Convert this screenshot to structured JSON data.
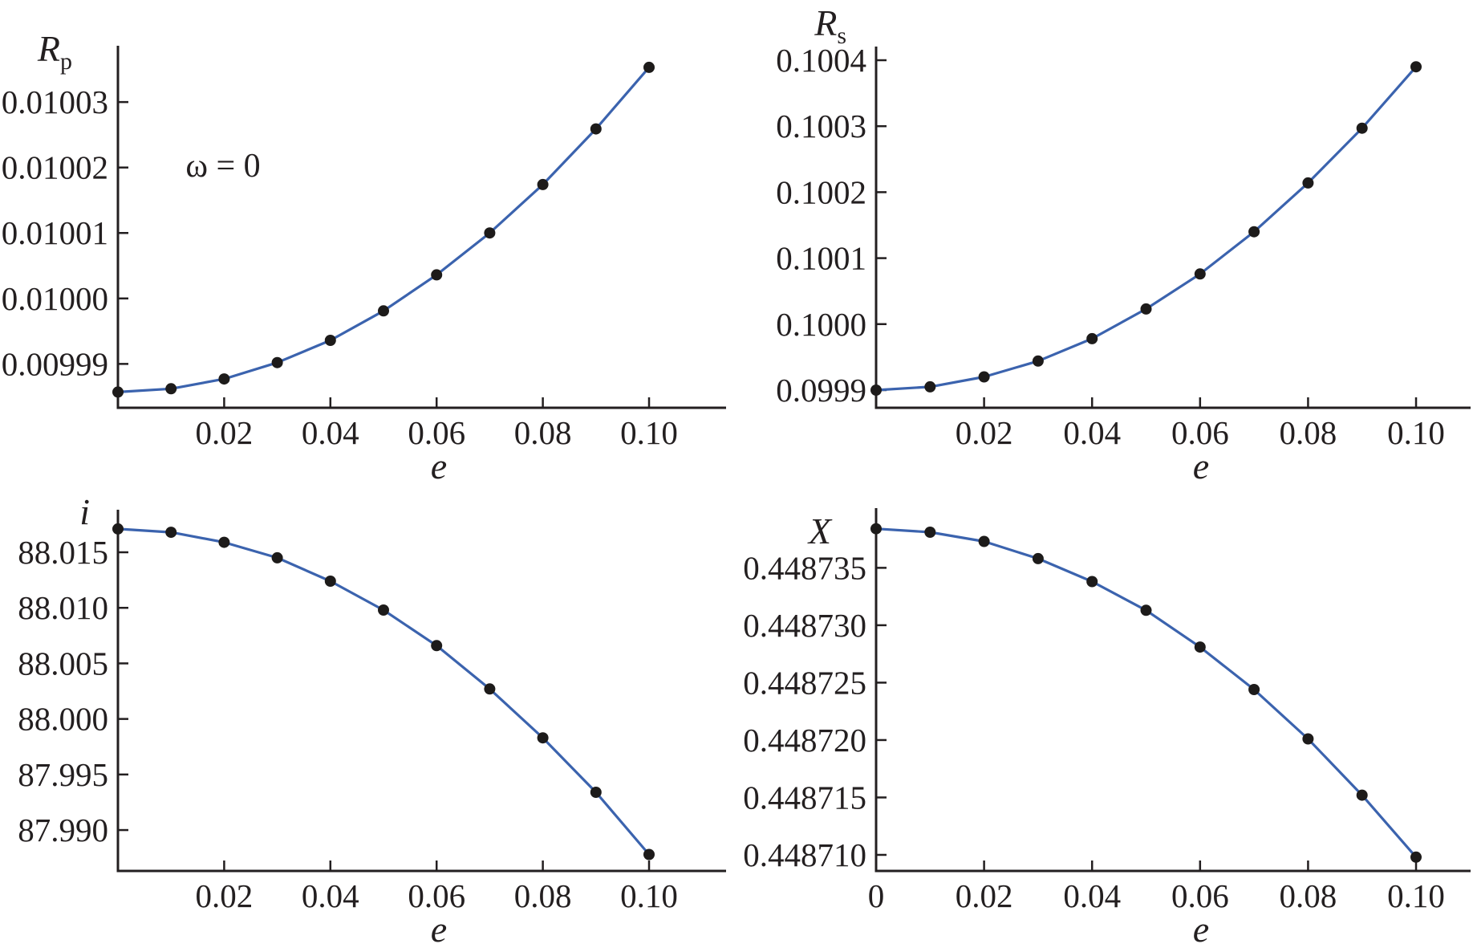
{
  "figure": {
    "background": "#ffffff",
    "line_color": "#3b63ae",
    "point_color": "#1d1b1a",
    "axis_color": "#231f20",
    "text_color": "#231f20"
  },
  "chart_data": [
    {
      "id": "rp",
      "type": "line",
      "title": "R_p vs e",
      "label_main": "R",
      "label_sub": "p",
      "xlabel": "e",
      "annotation": "ω = 0",
      "x": [
        0,
        0.01,
        0.02,
        0.03,
        0.04,
        0.05,
        0.06,
        0.07,
        0.08,
        0.09,
        0.1
      ],
      "y": [
        0.0099857,
        0.0099862,
        0.0099877,
        0.0099902,
        0.0099936,
        0.0099981,
        0.0100036,
        0.01001,
        0.0100174,
        0.0100259,
        0.0100353
      ],
      "x_ticks": [
        0.02,
        0.04,
        0.06,
        0.08,
        0.1
      ],
      "x_tick_labels": [
        "0.02",
        "0.04",
        "0.06",
        "0.08",
        "0.10"
      ],
      "y_ticks": [
        0.01003,
        0.01002,
        0.01001,
        0.01,
        0.00999
      ],
      "y_tick_labels": [
        "0.01003",
        "0.01002",
        "0.01001",
        "0.01000",
        "0.00999"
      ],
      "x_origin_label": "",
      "xlim": [
        0,
        0.1145
      ],
      "ylim": [
        0.0099833,
        0.0100386
      ],
      "grid": false,
      "legend": "none"
    },
    {
      "id": "rs",
      "type": "line",
      "title": "R_s vs e",
      "label_main": "R",
      "label_sub": "s",
      "xlabel": "e",
      "annotation": "",
      "x": [
        0,
        0.01,
        0.02,
        0.03,
        0.04,
        0.05,
        0.06,
        0.07,
        0.08,
        0.09,
        0.1
      ],
      "y": [
        0.0999,
        0.099905,
        0.09992,
        0.099944,
        0.099978,
        0.100023,
        0.100076,
        0.10014,
        0.100214,
        0.100297,
        0.10039
      ],
      "x_ticks": [
        0.02,
        0.04,
        0.06,
        0.08,
        0.1
      ],
      "x_tick_labels": [
        "0.02",
        "0.04",
        "0.06",
        "0.08",
        "0.10"
      ],
      "y_ticks": [
        0.1004,
        0.1003,
        0.1002,
        0.1001,
        0.1,
        0.0999
      ],
      "y_tick_labels": [
        "0.1004",
        "0.1003",
        "0.1002",
        "0.1001",
        "0.1000",
        "0.0999"
      ],
      "x_origin_label": "",
      "xlim": [
        0,
        0.1101
      ],
      "ylim": [
        0.0998732,
        0.1004207
      ],
      "grid": false,
      "legend": "none"
    },
    {
      "id": "i",
      "type": "line",
      "title": "i vs e",
      "label_main": "i",
      "label_sub": "",
      "xlabel": "e",
      "annotation": "",
      "x": [
        0,
        0.01,
        0.02,
        0.03,
        0.04,
        0.05,
        0.06,
        0.07,
        0.08,
        0.09,
        0.1
      ],
      "y": [
        88.0171,
        88.0168,
        88.0159,
        88.0145,
        88.0124,
        88.0098,
        88.0066,
        88.0027,
        87.9983,
        87.9934,
        87.9878
      ],
      "x_ticks": [
        0.02,
        0.04,
        0.06,
        0.08,
        0.1
      ],
      "x_tick_labels": [
        "0.02",
        "0.04",
        "0.06",
        "0.08",
        "0.10"
      ],
      "y_ticks": [
        88.015,
        88.01,
        88.005,
        88.0,
        87.995,
        87.99
      ],
      "y_tick_labels": [
        "88.015",
        "88.010",
        "88.005",
        "88.000",
        "87.995",
        "87.990"
      ],
      "x_origin_label": "",
      "xlim": [
        0,
        0.1145
      ],
      "ylim": [
        87.98632,
        88.01883
      ],
      "grid": false,
      "legend": "none"
    },
    {
      "id": "x",
      "type": "line",
      "title": "X vs e",
      "label_main": "X",
      "label_sub": "",
      "xlabel": "e",
      "annotation": "",
      "x": [
        0,
        0.01,
        0.02,
        0.03,
        0.04,
        0.05,
        0.06,
        0.07,
        0.08,
        0.09,
        0.1
      ],
      "y": [
        0.4487384,
        0.4487381,
        0.4487373,
        0.4487358,
        0.4487338,
        0.4487313,
        0.4487281,
        0.4487244,
        0.4487201,
        0.4487152,
        0.4487098
      ],
      "x_ticks": [
        0,
        0.02,
        0.04,
        0.06,
        0.08,
        0.1
      ],
      "x_tick_labels": [
        "0",
        "0.02",
        "0.04",
        "0.06",
        "0.08",
        "0.10"
      ],
      "y_ticks": [
        0.448735,
        0.44873,
        0.448725,
        0.44872,
        0.448715,
        0.44871
      ],
      "y_tick_labels": [
        "0.448735",
        "0.448730",
        "0.448725",
        "0.448720",
        "0.448715",
        "0.448710"
      ],
      "x_origin_label": "0",
      "xlim": [
        0,
        0.1101
      ],
      "ylim": [
        0.4487086,
        0.4487402
      ],
      "grid": false,
      "legend": "none"
    }
  ]
}
